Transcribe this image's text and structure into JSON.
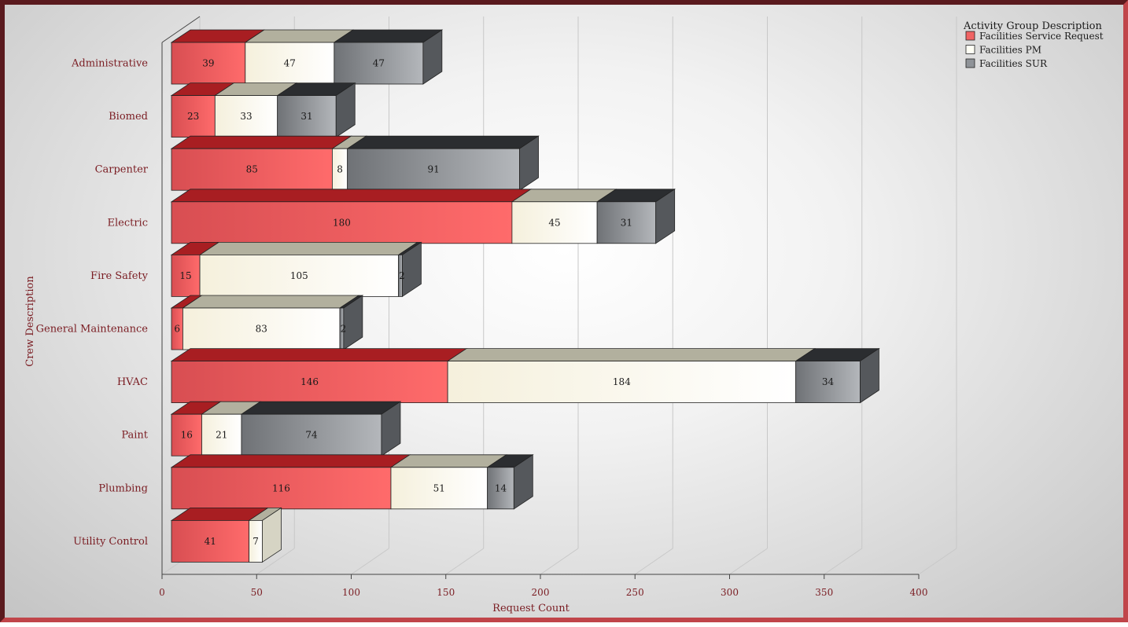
{
  "chart_data": {
    "type": "bar",
    "orientation": "horizontal",
    "stacked": true,
    "three_d": true,
    "categories": [
      "Administrative",
      "Biomed",
      "Carpenter",
      "Electric",
      "Fire Safety",
      "General Maintenance",
      "HVAC",
      "Paint",
      "Plumbing",
      "Utility Control"
    ],
    "series": [
      {
        "name": "Facilities Service Request",
        "values": [
          39,
          23,
          85,
          180,
          15,
          6,
          146,
          16,
          116,
          41
        ]
      },
      {
        "name": "Facilities PM",
        "values": [
          47,
          33,
          8,
          45,
          105,
          83,
          184,
          21,
          51,
          7
        ]
      },
      {
        "name": "Facilities SUR",
        "values": [
          47,
          31,
          91,
          31,
          2,
          2,
          34,
          74,
          14,
          0
        ]
      }
    ],
    "data_labels": [
      [
        "39",
        "47",
        "47"
      ],
      [
        "23",
        "33",
        "31"
      ],
      [
        "85",
        "8",
        "91"
      ],
      [
        "180",
        "45",
        "31"
      ],
      [
        "15",
        "105",
        "2"
      ],
      [
        "6",
        "83",
        "2"
      ],
      [
        "146",
        "184",
        "34"
      ],
      [
        "16",
        "21",
        "74"
      ],
      [
        "116",
        "51",
        "14"
      ],
      [
        "41",
        "7",
        ""
      ]
    ],
    "xlabel": "Request Count",
    "ylabel": "Crew Description",
    "xlim": [
      0,
      400
    ],
    "xticks": [
      "0",
      "50",
      "100",
      "150",
      "200",
      "250",
      "300",
      "350",
      "400"
    ],
    "legend_title": "Activity Group Description",
    "legend_position": "top-right",
    "grid": true,
    "colors": {
      "Facilities Service Request": "#f06464",
      "Facilities PM": "#fffff4",
      "Facilities SUR": "#8f9398",
      "label_text": "#7a1c22",
      "frame_dark": "#5a1a1e",
      "frame_light": "#c0454a"
    }
  }
}
